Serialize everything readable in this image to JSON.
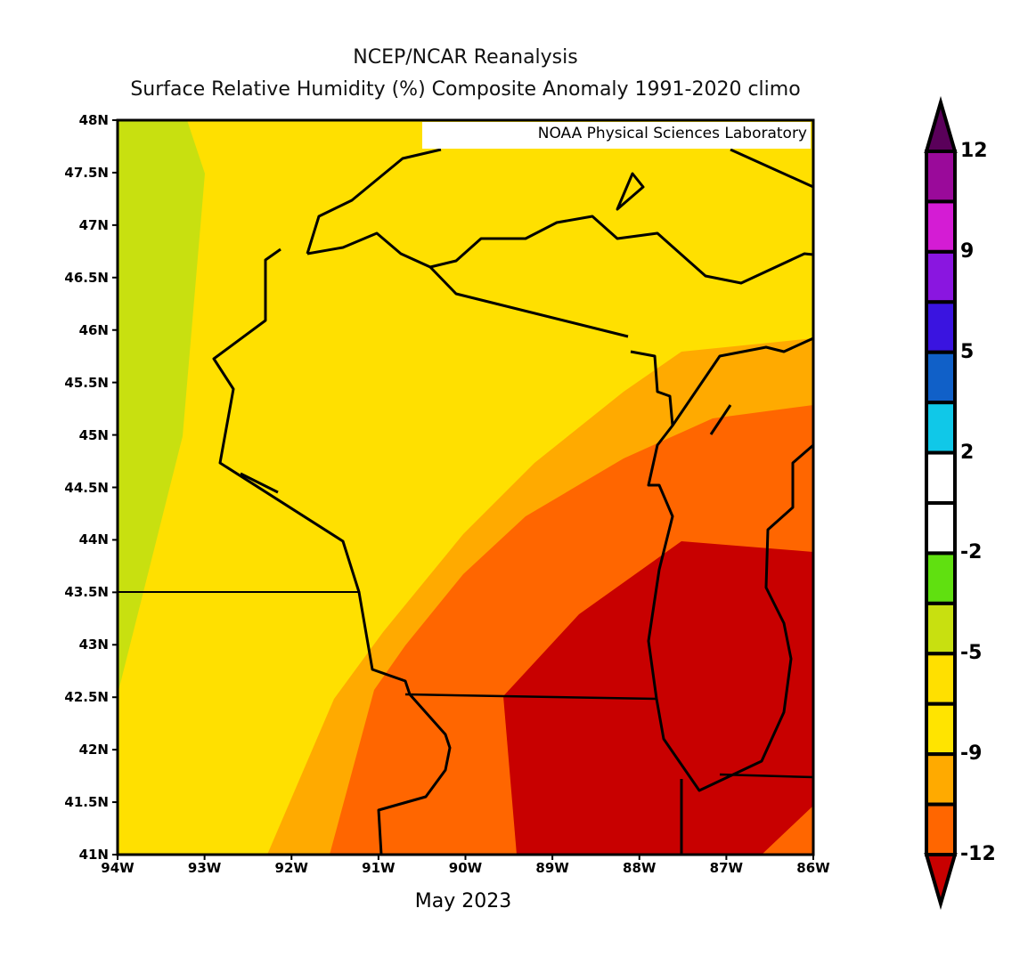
{
  "title_line1": "NCEP/NCAR Reanalysis",
  "title_line2": "Surface Relative Humidity (%) Composite Anomaly 1991-2020 climo",
  "credit": "NOAA Physical Sciences Laboratory",
  "period": "May 2023",
  "map": {
    "extent": {
      "lon": [
        "94W",
        "86W"
      ],
      "lat": [
        "41N",
        "48N"
      ]
    },
    "lat_ticks": [
      "48N",
      "47.5N",
      "47N",
      "46.5N",
      "46N",
      "45.5N",
      "45N",
      "44.5N",
      "44N",
      "43.5N",
      "43N",
      "42.5N",
      "42N",
      "41.5N",
      "41N"
    ],
    "lon_ticks": [
      "94W",
      "93W",
      "92W",
      "91W",
      "90W",
      "89W",
      "88W",
      "87W",
      "86W"
    ],
    "region_colors": {
      "green": "#c8e010",
      "yellow": "#ffe000",
      "orange": "#ffaa00",
      "dark_orange": "#ff6600",
      "red": "#c80000"
    }
  },
  "colorbar": {
    "labels": [
      "12",
      "9",
      "5",
      "2",
      "-2",
      "-5",
      "-9",
      "-12"
    ],
    "colors_top_to_bottom": [
      "#9a0a9a",
      "#d41cd4",
      "#8a16e0",
      "#3a14e0",
      "#1060c8",
      "#10c8e8",
      "#ffffff",
      "#ffffff",
      "#60e010",
      "#c8e010",
      "#ffe000",
      "#ffe400",
      "#ffaa00",
      "#ff6600"
    ],
    "over_color": "#5a005a",
    "under_color": "#c80000"
  }
}
